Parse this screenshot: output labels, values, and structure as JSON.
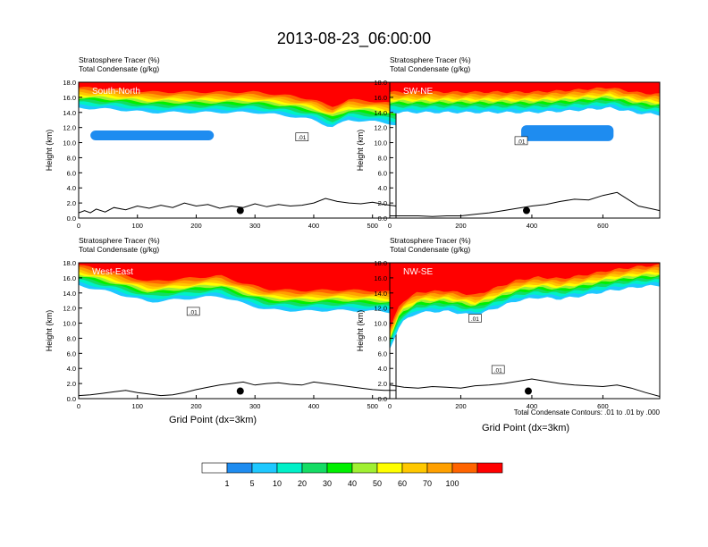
{
  "figure": {
    "title": "2013-08-23_06:00:00",
    "footer_note": "Total Condensate Contours: .01 to .01 by .000",
    "x_axis_label": "Grid Point (dx=3km)",
    "y_axis_label": "Height (km)",
    "top_left_label": "Stratosphere Tracer   (%)",
    "sub_left_label": "Total Condensate   (g/kg)"
  },
  "colorbar": {
    "colors": [
      "#ffffff",
      "#1e8cf0",
      "#1ec8ff",
      "#00f0c8",
      "#14dc64",
      "#00f000",
      "#a0f032",
      "#ffff00",
      "#ffc800",
      "#ffa000",
      "#ff6400",
      "#ff0000"
    ],
    "tick_labels": [
      "1",
      "5",
      "10",
      "20",
      "30",
      "40",
      "50",
      "60",
      "70",
      "100"
    ]
  },
  "chart_data": [
    {
      "type": "area",
      "title": "South-North",
      "xlabel": "",
      "ylabel": "Height (km)",
      "xlim": [
        0,
        540
      ],
      "ylim": [
        0,
        18
      ],
      "x_ticks": [
        "0",
        "100",
        "200",
        "300",
        "400",
        "500"
      ],
      "y_ticks": [
        "0.0",
        "2.0",
        "4.0",
        "6.0",
        "8.0",
        "10.0",
        "12.0",
        "14.0",
        "16.0",
        "18.0"
      ],
      "contour_labels": [
        {
          "text": ".01",
          "x": 380,
          "y": 10.7
        }
      ],
      "marker": {
        "x": 275,
        "y": 1.0
      },
      "terrain_height_km": [
        [
          0,
          0.7
        ],
        [
          10,
          1.0
        ],
        [
          20,
          0.7
        ],
        [
          30,
          1.2
        ],
        [
          45,
          0.8
        ],
        [
          60,
          1.4
        ],
        [
          80,
          1.1
        ],
        [
          100,
          1.6
        ],
        [
          120,
          1.3
        ],
        [
          140,
          1.7
        ],
        [
          160,
          1.4
        ],
        [
          180,
          2.0
        ],
        [
          200,
          1.6
        ],
        [
          220,
          1.8
        ],
        [
          240,
          1.3
        ],
        [
          260,
          1.6
        ],
        [
          280,
          1.4
        ],
        [
          300,
          1.9
        ],
        [
          320,
          1.5
        ],
        [
          340,
          1.8
        ],
        [
          360,
          1.6
        ],
        [
          380,
          1.7
        ],
        [
          400,
          2.0
        ],
        [
          420,
          2.6
        ],
        [
          440,
          2.2
        ],
        [
          460,
          2.0
        ],
        [
          480,
          1.9
        ],
        [
          500,
          2.1
        ],
        [
          520,
          1.8
        ],
        [
          540,
          1.6
        ]
      ],
      "tracer_base_km": [
        [
          0,
          14.6
        ],
        [
          60,
          14.4
        ],
        [
          120,
          14.0
        ],
        [
          180,
          14.0
        ],
        [
          240,
          14.0
        ],
        [
          300,
          14.0
        ],
        [
          360,
          13.5
        ],
        [
          400,
          13.0
        ],
        [
          430,
          12.0
        ],
        [
          460,
          13.0
        ],
        [
          500,
          12.8
        ],
        [
          540,
          12.4
        ]
      ],
      "condensate_layer": {
        "from_x": 20,
        "to_x": 230,
        "base_km": 10.3,
        "top_km": 11.6
      }
    },
    {
      "type": "area",
      "title": "SW-NE",
      "xlabel": "",
      "ylabel": "Height (km)",
      "xlim": [
        0,
        760
      ],
      "ylim": [
        0,
        18
      ],
      "x_ticks": [
        "0",
        "200",
        "400",
        "600"
      ],
      "y_ticks": [
        "0.0",
        "2.0",
        "4.0",
        "6.0",
        "8.0",
        "10.0",
        "12.0",
        "14.0",
        "16.0",
        "18.0"
      ],
      "contour_labels": [
        {
          "text": ".01",
          "x": 370,
          "y": 10.2
        }
      ],
      "marker": {
        "x": 385,
        "y": 1.0
      },
      "terrain_height_km": [
        [
          0,
          0.3
        ],
        [
          40,
          0.3
        ],
        [
          80,
          0.3
        ],
        [
          120,
          0.2
        ],
        [
          160,
          0.3
        ],
        [
          200,
          0.3
        ],
        [
          240,
          0.5
        ],
        [
          280,
          0.7
        ],
        [
          320,
          1.0
        ],
        [
          360,
          1.3
        ],
        [
          400,
          1.6
        ],
        [
          440,
          1.8
        ],
        [
          480,
          2.2
        ],
        [
          520,
          2.5
        ],
        [
          560,
          2.4
        ],
        [
          600,
          3.0
        ],
        [
          640,
          3.4
        ],
        [
          660,
          2.8
        ],
        [
          700,
          1.6
        ],
        [
          740,
          1.2
        ],
        [
          760,
          1.0
        ]
      ],
      "tracer_base_km": [
        [
          0,
          14.0
        ],
        [
          100,
          14.0
        ],
        [
          200,
          14.0
        ],
        [
          300,
          14.0
        ],
        [
          400,
          14.0
        ],
        [
          500,
          14.2
        ],
        [
          560,
          14.4
        ],
        [
          620,
          14.6
        ],
        [
          700,
          13.9
        ],
        [
          760,
          13.7
        ]
      ],
      "condensate_layer": {
        "from_x": 370,
        "to_x": 630,
        "base_km": 10.2,
        "top_km": 12.3
      }
    },
    {
      "type": "area",
      "title": "West-East",
      "xlabel": "Grid Point (dx=3km)",
      "ylabel": "Height (km)",
      "xlim": [
        0,
        540
      ],
      "ylim": [
        0,
        18
      ],
      "x_ticks": [
        "0",
        "100",
        "200",
        "300",
        "400",
        "500"
      ],
      "y_ticks": [
        "0.0",
        "2.0",
        "4.0",
        "6.0",
        "8.0",
        "10.0",
        "12.0",
        "14.0",
        "16.0",
        "18.0"
      ],
      "contour_labels": [
        {
          "text": ".01",
          "x": 195,
          "y": 11.5
        }
      ],
      "marker": {
        "x": 275,
        "y": 1.0
      },
      "terrain_height_km": [
        [
          0,
          0.4
        ],
        [
          20,
          0.5
        ],
        [
          40,
          0.7
        ],
        [
          60,
          0.9
        ],
        [
          80,
          1.1
        ],
        [
          100,
          0.8
        ],
        [
          120,
          0.6
        ],
        [
          140,
          0.4
        ],
        [
          160,
          0.5
        ],
        [
          180,
          0.8
        ],
        [
          200,
          1.2
        ],
        [
          220,
          1.5
        ],
        [
          240,
          1.8
        ],
        [
          260,
          2.0
        ],
        [
          280,
          2.2
        ],
        [
          300,
          1.8
        ],
        [
          320,
          2.0
        ],
        [
          340,
          2.1
        ],
        [
          360,
          1.9
        ],
        [
          380,
          1.8
        ],
        [
          400,
          2.2
        ],
        [
          420,
          2.0
        ],
        [
          440,
          1.8
        ],
        [
          460,
          1.6
        ],
        [
          480,
          1.4
        ],
        [
          500,
          1.2
        ],
        [
          520,
          1.1
        ],
        [
          540,
          1.1
        ]
      ],
      "tracer_base_km": [
        [
          0,
          15.0
        ],
        [
          60,
          14.0
        ],
        [
          120,
          12.8
        ],
        [
          180,
          13.2
        ],
        [
          240,
          13.6
        ],
        [
          280,
          12.6
        ],
        [
          320,
          11.8
        ],
        [
          380,
          11.6
        ],
        [
          440,
          11.7
        ],
        [
          500,
          11.6
        ],
        [
          540,
          11.4
        ]
      ],
      "condensate_layer": null
    },
    {
      "type": "area",
      "title": "NW-SE",
      "xlabel": "Grid Point (dx=3km)",
      "ylabel": "Height (km)",
      "xlim": [
        0,
        760
      ],
      "ylim": [
        0,
        18
      ],
      "x_ticks": [
        "0",
        "200",
        "400",
        "600"
      ],
      "y_ticks": [
        "0.0",
        "2.0",
        "4.0",
        "6.0",
        "8.0",
        "10.0",
        "12.0",
        "14.0",
        "16.0",
        "18.0"
      ],
      "contour_labels": [
        {
          "text": ".01",
          "x": 240,
          "y": 10.6
        },
        {
          "text": ".01",
          "x": 305,
          "y": 3.8
        }
      ],
      "marker": {
        "x": 390,
        "y": 1.0
      },
      "terrain_height_km": [
        [
          0,
          1.8
        ],
        [
          40,
          1.5
        ],
        [
          80,
          1.4
        ],
        [
          120,
          1.6
        ],
        [
          160,
          1.5
        ],
        [
          200,
          1.4
        ],
        [
          240,
          1.7
        ],
        [
          280,
          1.8
        ],
        [
          320,
          2.0
        ],
        [
          360,
          2.3
        ],
        [
          400,
          2.6
        ],
        [
          440,
          2.3
        ],
        [
          480,
          2.0
        ],
        [
          520,
          1.8
        ],
        [
          560,
          1.7
        ],
        [
          600,
          1.6
        ],
        [
          640,
          1.8
        ],
        [
          680,
          1.4
        ],
        [
          720,
          0.8
        ],
        [
          760,
          0.3
        ]
      ],
      "tracer_base_km": [
        [
          0,
          6.5
        ],
        [
          30,
          10.0
        ],
        [
          80,
          11.4
        ],
        [
          160,
          11.6
        ],
        [
          240,
          11.0
        ],
        [
          300,
          12.0
        ],
        [
          360,
          13.0
        ],
        [
          420,
          13.4
        ],
        [
          480,
          13.2
        ],
        [
          540,
          13.6
        ],
        [
          620,
          14.3
        ],
        [
          700,
          14.8
        ],
        [
          760,
          15.0
        ]
      ],
      "condensate_layer": null
    }
  ]
}
